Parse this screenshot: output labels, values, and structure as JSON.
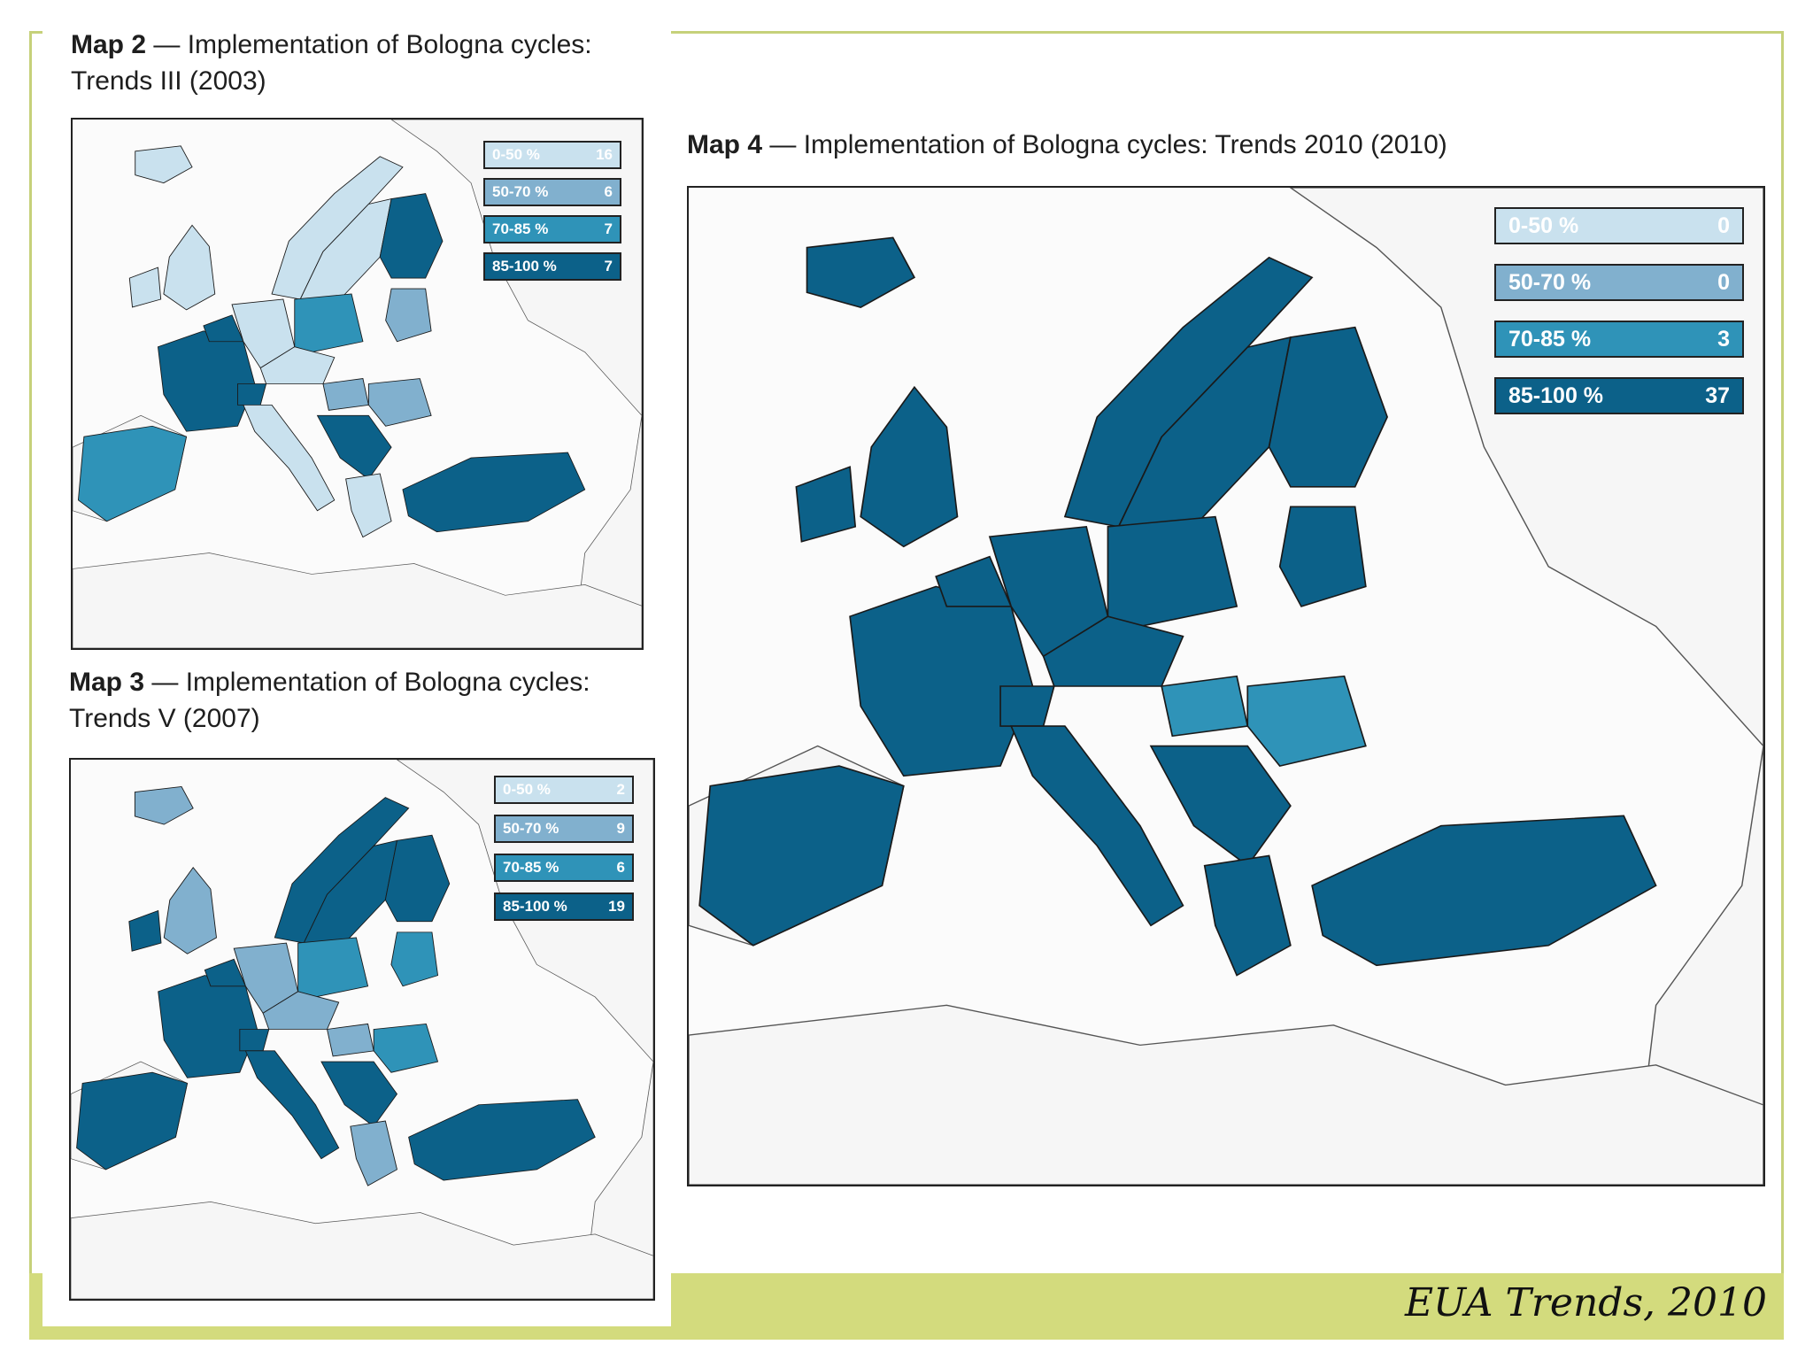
{
  "colors": {
    "frame": "#c6d17a",
    "band": "#d3db7d",
    "c0": "#c9e1ee",
    "c1": "#81b0ce",
    "c2": "#2f93b8",
    "c3": "#0c6189"
  },
  "map2": {
    "title_bold": "Map 2",
    "title_rest": " — Implementation of Bologna cycles:",
    "title_line2": "Trends III (2003)",
    "legend": [
      {
        "label": "0-50 %",
        "count": "16"
      },
      {
        "label": "50-70 %",
        "count": "6"
      },
      {
        "label": "70-85 %",
        "count": "7"
      },
      {
        "label": "85-100 %",
        "count": "7"
      }
    ]
  },
  "map3": {
    "title_bold": "Map 3",
    "title_rest": " — Implementation of Bologna cycles:",
    "title_line2": "Trends V (2007)",
    "legend": [
      {
        "label": "0-50 %",
        "count": "2"
      },
      {
        "label": "50-70 %",
        "count": "9"
      },
      {
        "label": "70-85 %",
        "count": "6"
      },
      {
        "label": "85-100 %",
        "count": "19"
      }
    ]
  },
  "map4": {
    "title_bold": "Map 4",
    "title_rest": " — Implementation of Bologna cycles: Trends 2010 (2010)",
    "legend": [
      {
        "label": "0-50 %",
        "count": "0"
      },
      {
        "label": "50-70 %",
        "count": "0"
      },
      {
        "label": "70-85 %",
        "count": "3"
      },
      {
        "label": "85-100 %",
        "count": "37"
      }
    ]
  },
  "footer": {
    "citation": "EUA Trends, 2010"
  }
}
